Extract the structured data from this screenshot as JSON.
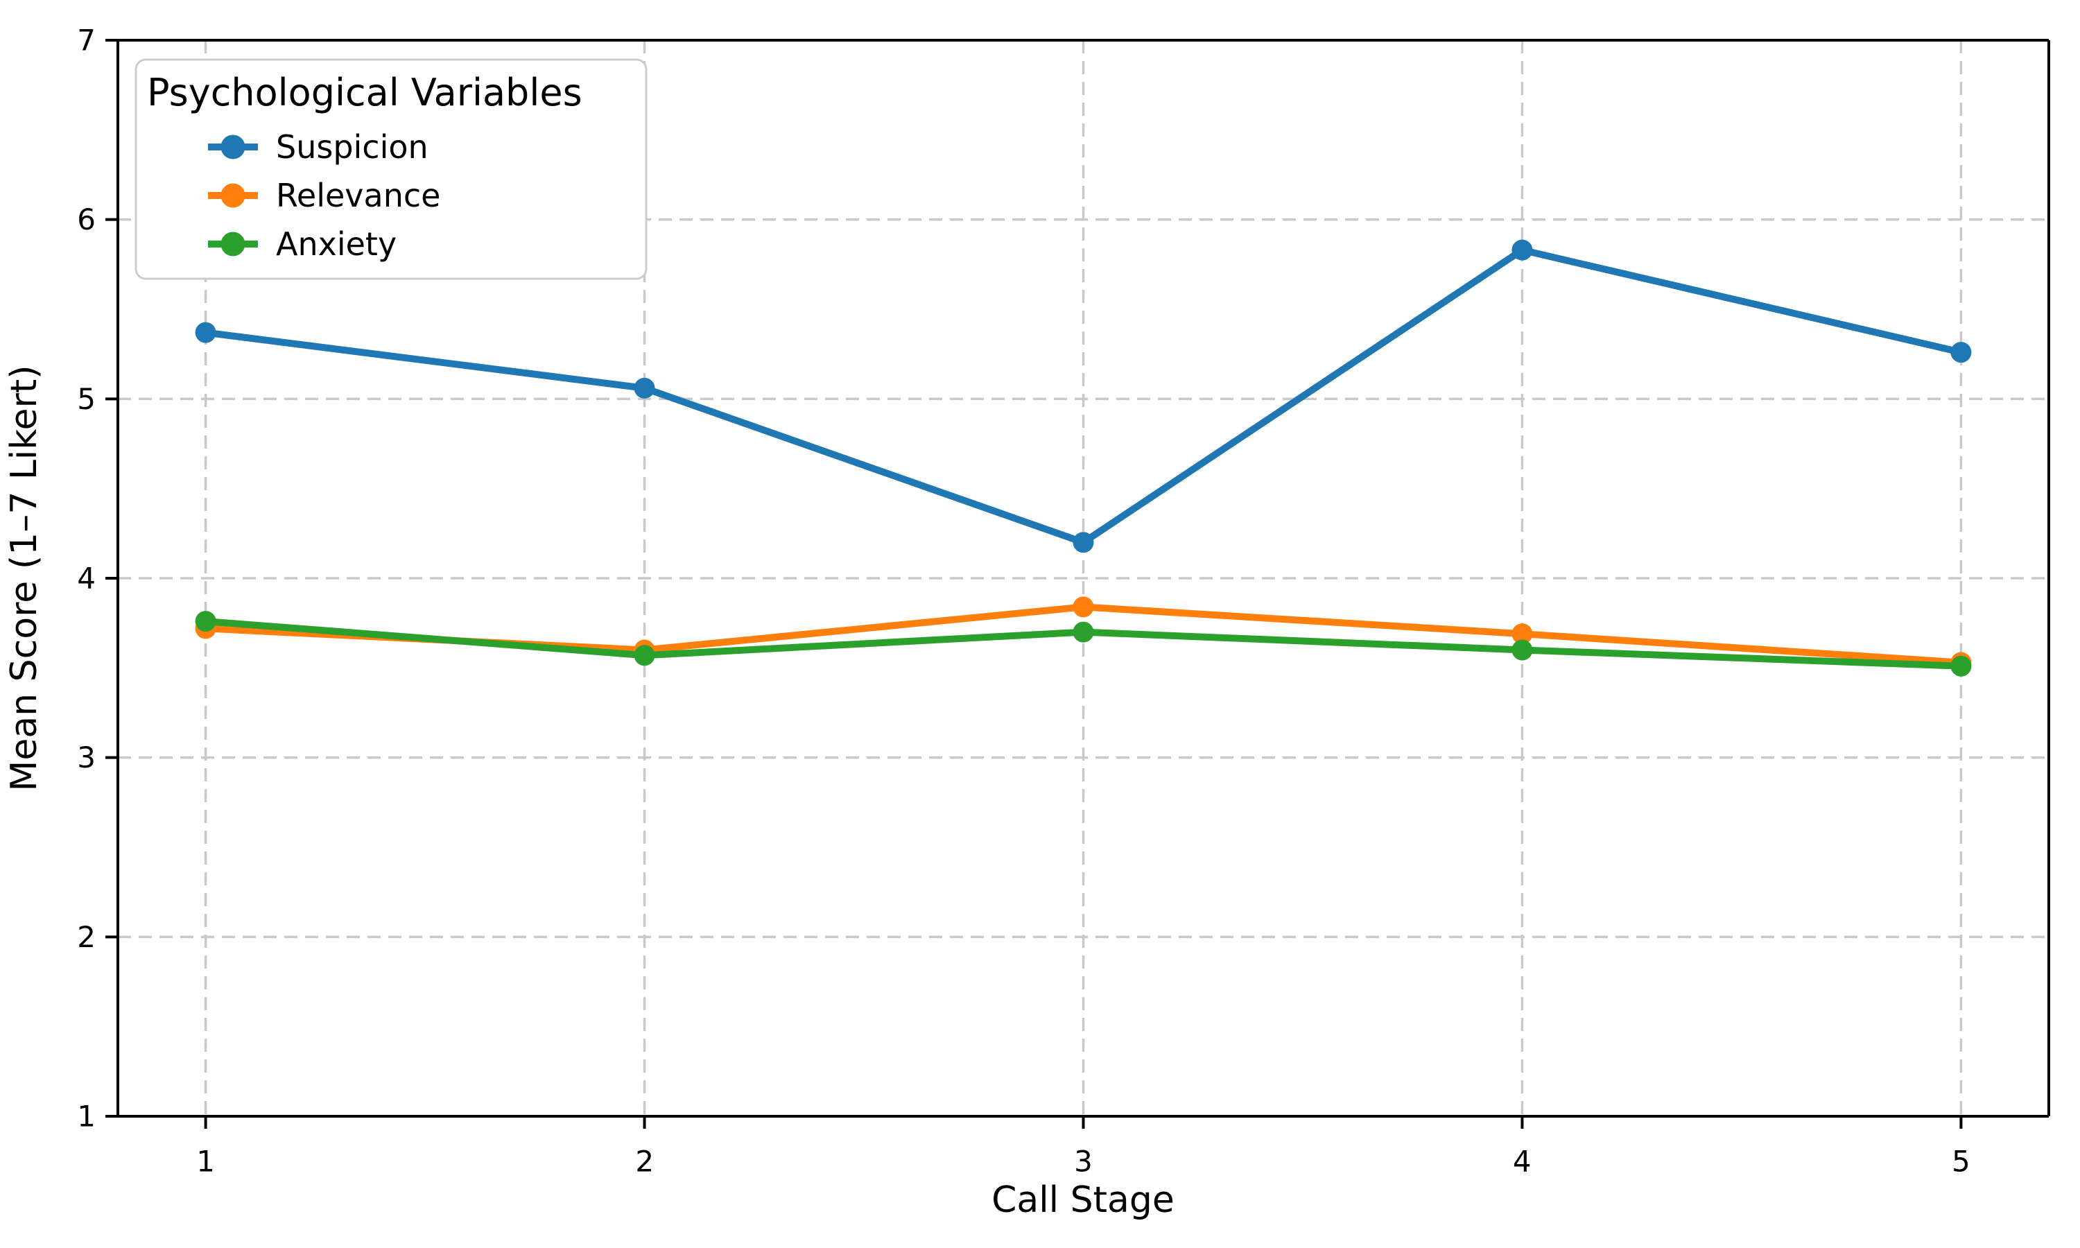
{
  "chart_data": {
    "type": "line",
    "title": "",
    "xlabel": "Call Stage",
    "ylabel": "Mean Score (1–7 Likert)",
    "legend_title": "Psychological Variables",
    "legend_position": "upper left",
    "x": [
      1,
      2,
      3,
      4,
      5
    ],
    "series": [
      {
        "name": "Suspicion",
        "color": "#1f77b4",
        "values": [
          5.37,
          5.06,
          4.2,
          5.83,
          5.26
        ]
      },
      {
        "name": "Relevance",
        "color": "#ff7f0e",
        "values": [
          3.72,
          3.6,
          3.84,
          3.69,
          3.53
        ]
      },
      {
        "name": "Anxiety",
        "color": "#2ca02c",
        "values": [
          3.76,
          3.57,
          3.7,
          3.6,
          3.51
        ]
      }
    ],
    "xlim": [
      0.8,
      5.2
    ],
    "ylim": [
      1,
      7
    ],
    "xtick_labels": [
      "1",
      "2",
      "3",
      "4",
      "5"
    ],
    "ytick_labels": [
      "7",
      "6",
      "5",
      "4",
      "3",
      "2",
      "1"
    ],
    "grid": "dashed, both axes",
    "grid_color": "#c9c9c9",
    "axis_color": "#000000",
    "background_color": "#ffffff",
    "marker": "circle"
  }
}
